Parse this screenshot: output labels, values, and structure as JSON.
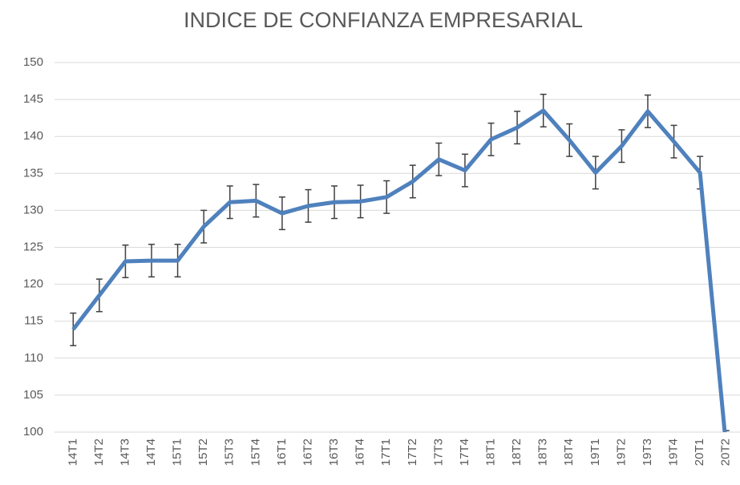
{
  "chart_data": {
    "type": "line",
    "title": "INDICE DE CONFIANZA EMPRESARIAL",
    "categories": [
      "14T1",
      "14T2",
      "14T3",
      "14T4",
      "15T1",
      "15T2",
      "15T3",
      "15T4",
      "16T1",
      "16T2",
      "16T3",
      "16T4",
      "17T1",
      "17T2",
      "17T3",
      "17T4",
      "18T1",
      "18T2",
      "18T3",
      "18T4",
      "19T1",
      "19T2",
      "19T3",
      "19T4",
      "20T1",
      "20T2"
    ],
    "series": [
      {
        "name": "Indice",
        "color": "#4f81bd",
        "values": [
          113.9,
          118.5,
          123.1,
          123.2,
          123.2,
          127.8,
          131.1,
          131.3,
          129.6,
          130.6,
          131.1,
          131.2,
          131.8,
          133.9,
          136.9,
          135.4,
          139.6,
          141.2,
          143.5,
          139.5,
          135.1,
          138.7,
          143.4,
          139.3,
          135.1,
          98
        ],
        "errors": [
          2.2,
          2.2,
          2.2,
          2.2,
          2.2,
          2.2,
          2.2,
          2.2,
          2.2,
          2.2,
          2.2,
          2.2,
          2.2,
          2.2,
          2.2,
          2.2,
          2.2,
          2.2,
          2.2,
          2.2,
          2.2,
          2.2,
          2.2,
          2.2,
          2.2,
          2.2
        ]
      }
    ],
    "ylim": [
      100,
      150
    ],
    "yticks": [
      100,
      105,
      110,
      115,
      120,
      125,
      130,
      135,
      140,
      145,
      150
    ],
    "grid": true
  }
}
